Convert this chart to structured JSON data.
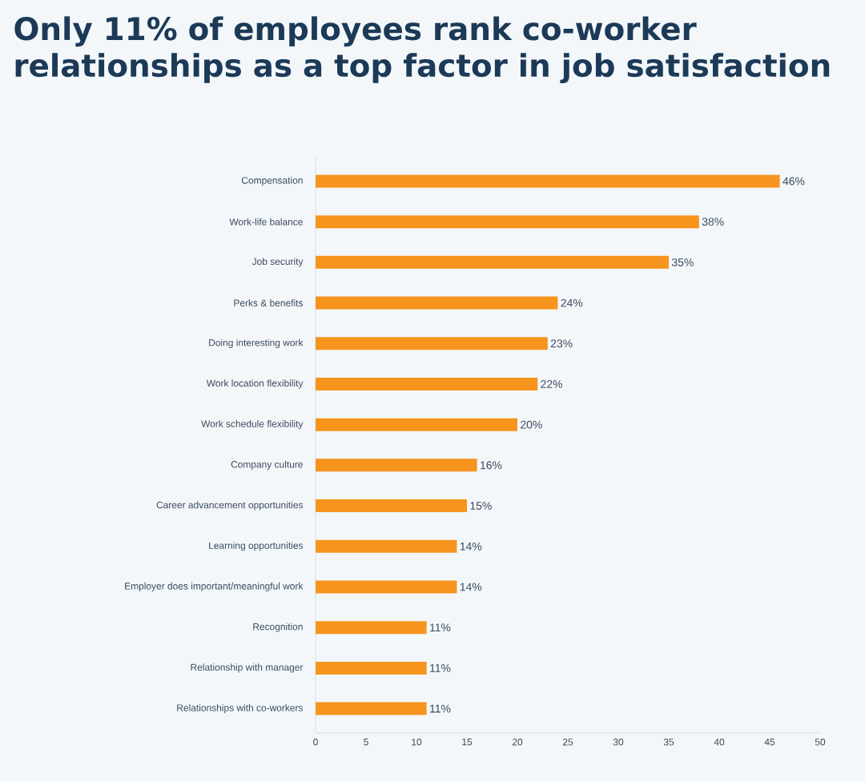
{
  "chart_data": {
    "type": "bar",
    "orientation": "horizontal",
    "title": "Only 11% of employees rank co-worker relationships as a top factor in job satisfaction",
    "categories": [
      "Compensation",
      "Work-life balance",
      "Job security",
      "Perks & benefits",
      "Doing interesting work",
      "Work location flexibility",
      "Work schedule flexibility",
      "Company culture",
      "Career advancement opportunities",
      "Learning opportunities",
      "Employer does important/meaningful work",
      "Recognition",
      "Relationship with manager",
      "Relationships with co-workers"
    ],
    "values": [
      46,
      38,
      35,
      24,
      23,
      22,
      20,
      16,
      15,
      14,
      14,
      11,
      11,
      11
    ],
    "value_labels": [
      "46%",
      "38%",
      "35%",
      "24%",
      "23%",
      "22%",
      "20%",
      "16%",
      "15%",
      "14%",
      "14%",
      "11%",
      "11%",
      "11%"
    ],
    "color": "#f7941d",
    "xlim": [
      0,
      50
    ],
    "xticks": [
      0,
      5,
      10,
      15,
      20,
      25,
      30,
      35,
      40,
      45,
      50
    ],
    "grid": false
  }
}
